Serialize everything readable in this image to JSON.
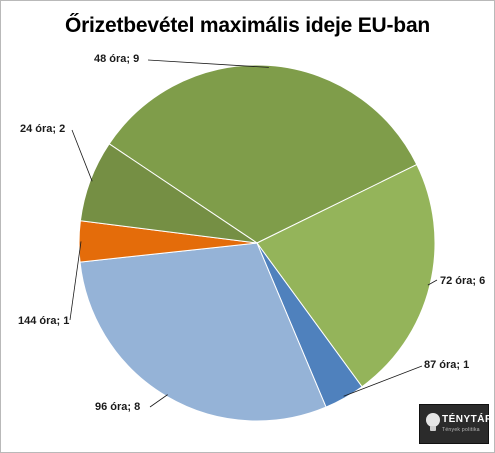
{
  "chart_data": {
    "type": "pie",
    "title": "Őrizetbevétel maximális ideje EU-ban",
    "slices": [
      {
        "label": "48 óra; 9",
        "value": 9,
        "color": "#7f9d4a"
      },
      {
        "label": "72 óra; 6",
        "value": 6,
        "color": "#94b45a"
      },
      {
        "label": "87 óra; 1",
        "value": 1,
        "color": "#4f81bd"
      },
      {
        "label": "96 óra; 8",
        "value": 8,
        "color": "#95b3d7"
      },
      {
        "label": "144 óra; 1",
        "value": 1,
        "color": "#e46c0a"
      },
      {
        "label": "24 óra; 2",
        "value": 2,
        "color": "#758f44"
      }
    ],
    "legend": "none",
    "data_labels": "outside with leader lines"
  },
  "logo": {
    "name": "TÉNYTÁR",
    "tagline": "Tények politika"
  }
}
